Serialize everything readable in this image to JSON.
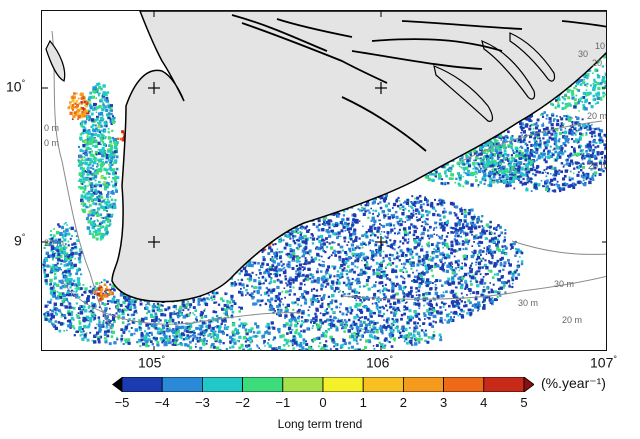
{
  "map": {
    "latitude_labels": [
      {
        "deg": "10",
        "sym": "°"
      },
      {
        "deg": "9",
        "sym": "°"
      }
    ],
    "longitude_labels": [
      {
        "deg": "105",
        "sym": "°"
      },
      {
        "deg": "106",
        "sym": "°"
      },
      {
        "deg": "107",
        "sym": "°"
      }
    ],
    "land_color": "#e4e4e4",
    "coast_color": "#000000",
    "isobath_color": "#8a8a8a",
    "isobath_labels": [
      "10",
      "20",
      "30",
      "0 m",
      "0 m",
      "20 m",
      "20 m",
      "30 m",
      "30 m",
      "20 m",
      "20 m"
    ]
  },
  "colorbar": {
    "ticks": [
      "−5",
      "−4",
      "−3",
      "−2",
      "−1",
      "0",
      "1",
      "2",
      "3",
      "4",
      "5"
    ],
    "colors": [
      "#1d3bb0",
      "#2a8ad8",
      "#22c8c8",
      "#3ddc7a",
      "#a6e04a",
      "#f4f02a",
      "#f8c020",
      "#f49a1c",
      "#ee6a18",
      "#c82a1a"
    ],
    "units": "(%.year⁻¹)",
    "title": "Long term trend"
  }
}
